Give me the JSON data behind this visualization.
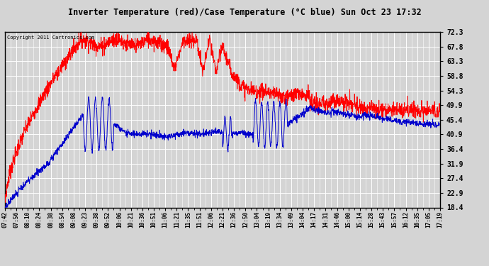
{
  "title": "Inverter Temperature (red)/Case Temperature (°C blue) Sun Oct 23 17:32",
  "copyright": "Copyright 2011 Cartronics.com",
  "y_ticks": [
    18.4,
    22.9,
    27.4,
    31.9,
    36.4,
    40.9,
    45.4,
    49.9,
    54.3,
    58.8,
    63.3,
    67.8,
    72.3
  ],
  "y_min": 18.4,
  "y_max": 72.3,
  "background_color": "#d4d4d4",
  "plot_bg_color": "#d4d4d4",
  "grid_color": "#ffffff",
  "red_color": "#ff0000",
  "blue_color": "#0000cc",
  "x_labels": [
    "07:42",
    "07:56",
    "08:10",
    "08:24",
    "08:38",
    "08:54",
    "09:08",
    "09:23",
    "09:38",
    "09:52",
    "10:06",
    "10:21",
    "10:36",
    "10:51",
    "11:06",
    "11:21",
    "11:35",
    "11:51",
    "12:06",
    "12:21",
    "12:36",
    "12:50",
    "13:04",
    "13:19",
    "13:34",
    "13:49",
    "14:04",
    "14:17",
    "14:31",
    "14:46",
    "15:00",
    "15:14",
    "15:28",
    "15:43",
    "15:57",
    "16:12",
    "16:35",
    "17:05",
    "17:19"
  ]
}
